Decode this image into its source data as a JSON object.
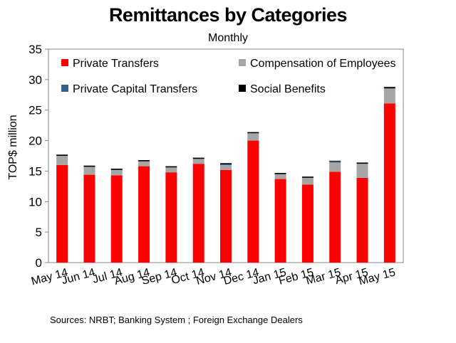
{
  "chart_data": {
    "type": "bar",
    "stacked": true,
    "title": "Remittances by Categories",
    "subtitle": "Monthly",
    "ylabel": "TOP$ million",
    "xlabel": "",
    "ylim": [
      0,
      35
    ],
    "yticks": [
      0,
      5,
      10,
      15,
      20,
      25,
      30,
      35
    ],
    "grid": false,
    "legend_placement": "top",
    "categories": [
      "May 14",
      "Jun 14",
      "Jul 14",
      "Aug 14",
      "Sep 14",
      "Oct 14",
      "Nov 14",
      "Dec 14",
      "Jan 15",
      "Feb 15",
      "Mar 15",
      "Apr 15",
      "May 15"
    ],
    "series": [
      {
        "name": "Private Transfers",
        "color": "#ff0000",
        "values": [
          16.0,
          14.4,
          14.3,
          15.8,
          14.8,
          16.2,
          15.2,
          20.0,
          13.7,
          12.8,
          14.9,
          13.9,
          26.1
        ]
      },
      {
        "name": "Compensation of Employees",
        "color": "#a6a6a6",
        "values": [
          1.5,
          1.3,
          0.9,
          0.8,
          0.8,
          0.8,
          0.8,
          1.2,
          0.8,
          1.1,
          1.5,
          2.3,
          2.4
        ]
      },
      {
        "name": "Private Capital Transfers",
        "color": "#376092",
        "values": [
          0.0,
          0.0,
          0.0,
          0.0,
          0.0,
          0.0,
          0.1,
          0.0,
          0.0,
          0.0,
          0.2,
          0.0,
          0.1
        ]
      },
      {
        "name": "Social Benefits",
        "color": "#000000",
        "values": [
          0.2,
          0.2,
          0.2,
          0.2,
          0.2,
          0.2,
          0.2,
          0.2,
          0.2,
          0.2,
          0.1,
          0.2,
          0.2
        ]
      }
    ]
  },
  "source": "Sources: NRBT; Banking System ; Foreign Exchange Dealers"
}
